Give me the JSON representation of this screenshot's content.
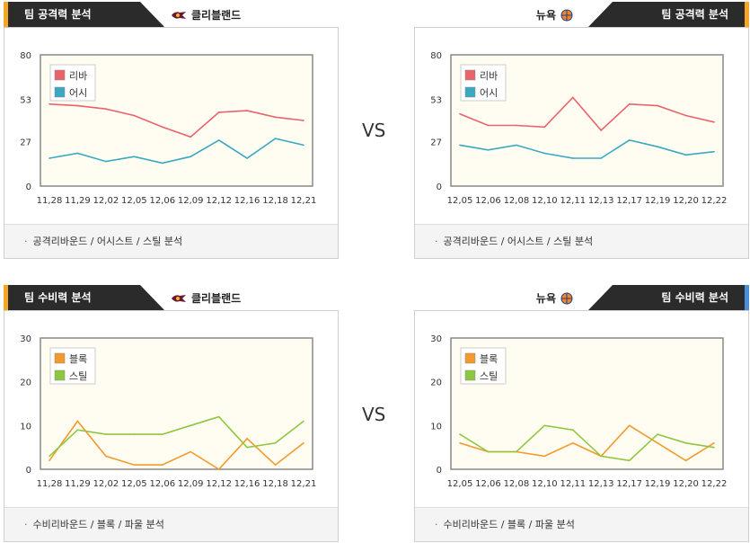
{
  "vs_label": "VS",
  "panels": [
    {
      "id": "p1",
      "tab_label": "팀 공격력 분석",
      "team_name": "클리블랜드",
      "team_logo": "cavaliers-logo-icon",
      "side": "left",
      "caption": "공격리바운드 / 어시스트 / 스틸 분석"
    },
    {
      "id": "p2",
      "tab_label": "팀 공격력 분석",
      "team_name": "뉴욕",
      "team_logo": "knicks-logo-icon",
      "side": "right",
      "caption": "공격리바운드 / 어시스트 / 스틸 분석"
    },
    {
      "id": "p3",
      "tab_label": "팀 수비력 분석",
      "team_name": "클리블랜드",
      "team_logo": "cavaliers-logo-icon",
      "side": "left",
      "caption": "수비리바운드 / 블록 / 파울 분석"
    },
    {
      "id": "p4",
      "tab_label": "팀 수비력 분석",
      "team_name": "뉴욕",
      "team_logo": "knicks-logo-icon",
      "side": "right",
      "caption": "수비리바운드 / 블록 / 파울 분석"
    }
  ],
  "colors": {
    "series_red": "#e8636a",
    "series_teal": "#3aa8c1",
    "series_orange": "#f39a2e",
    "series_green": "#8dc73f",
    "plot_bg": "#fffdf2",
    "tab_accent_orange": "#f5a623",
    "tab_accent_blue": "#4a90d9"
  },
  "chart_data": [
    {
      "type": "line",
      "categories": [
        "11,28",
        "11,29",
        "12,02",
        "12,05",
        "12,06",
        "12,09",
        "12,12",
        "12,16",
        "12,18",
        "12,21"
      ],
      "yticks": [
        0,
        27,
        53,
        80
      ],
      "ylim": [
        0,
        80
      ],
      "legend_position": "top-left",
      "grid": false,
      "series": [
        {
          "name": "리바",
          "color": "#e8636a",
          "values": [
            50,
            49,
            47,
            43,
            36,
            30,
            45,
            46,
            42,
            40
          ]
        },
        {
          "name": "어시",
          "color": "#3aa8c1",
          "values": [
            17,
            20,
            15,
            18,
            14,
            18,
            28,
            17,
            29,
            25
          ]
        }
      ]
    },
    {
      "type": "line",
      "categories": [
        "12,05",
        "12,06",
        "12,08",
        "12,10",
        "12,11",
        "12,13",
        "12,17",
        "12,19",
        "12,20",
        "12,22"
      ],
      "yticks": [
        0,
        27,
        53,
        80
      ],
      "ylim": [
        0,
        80
      ],
      "legend_position": "top-left",
      "grid": false,
      "series": [
        {
          "name": "리바",
          "color": "#e8636a",
          "values": [
            44,
            37,
            37,
            36,
            54,
            34,
            50,
            49,
            43,
            39
          ]
        },
        {
          "name": "어시",
          "color": "#3aa8c1",
          "values": [
            25,
            22,
            25,
            20,
            17,
            17,
            28,
            24,
            19,
            21
          ]
        }
      ]
    },
    {
      "type": "line",
      "categories": [
        "11,28",
        "11,29",
        "12,02",
        "12,05",
        "12,06",
        "12,09",
        "12,12",
        "12,16",
        "12,18",
        "12,21"
      ],
      "yticks": [
        0,
        10,
        20,
        30
      ],
      "ylim": [
        0,
        30
      ],
      "legend_position": "top-left",
      "grid": false,
      "series": [
        {
          "name": "블록",
          "color": "#f39a2e",
          "values": [
            2,
            11,
            3,
            1,
            1,
            4,
            0,
            7,
            1,
            6
          ]
        },
        {
          "name": "스틸",
          "color": "#8dc73f",
          "values": [
            3,
            9,
            8,
            8,
            8,
            10,
            12,
            5,
            6,
            11
          ]
        }
      ]
    },
    {
      "type": "line",
      "categories": [
        "12,05",
        "12,06",
        "12,08",
        "12,10",
        "12,11",
        "12,13",
        "12,17",
        "12,19",
        "12,20",
        "12,22"
      ],
      "yticks": [
        0,
        10,
        20,
        30
      ],
      "ylim": [
        0,
        30
      ],
      "legend_position": "top-left",
      "grid": false,
      "series": [
        {
          "name": "블록",
          "color": "#f39a2e",
          "values": [
            6,
            4,
            4,
            3,
            6,
            3,
            10,
            6,
            2,
            6
          ]
        },
        {
          "name": "스틸",
          "color": "#8dc73f",
          "values": [
            8,
            4,
            4,
            10,
            9,
            3,
            2,
            8,
            6,
            5
          ]
        }
      ]
    }
  ]
}
